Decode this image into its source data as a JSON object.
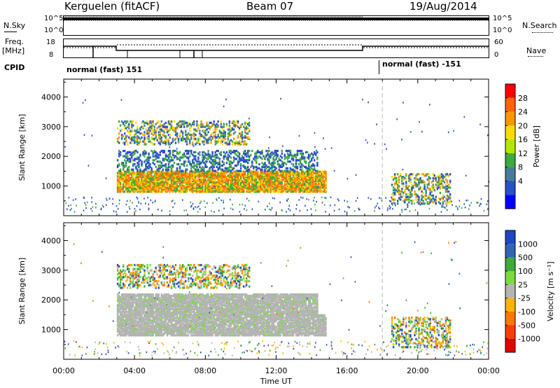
{
  "header": {
    "radar": "Kerguelen (fitACF)",
    "beam": "Beam 07",
    "date": "19/Aug/2014"
  },
  "top_panels": {
    "nsky_label": "N.Sky",
    "nsky_ticks": [
      "10^5",
      "10^0"
    ],
    "nsearch_label": "N.Search",
    "nsearch_ticks": [
      "10^5",
      "10^0"
    ],
    "freq_label": "Freq.",
    "freq_unit": "[MHz]",
    "freq_ticks": [
      "18",
      "8"
    ],
    "nave_label": "Nave",
    "nave_ticks": [
      "60",
      "0"
    ],
    "cpid_label": "CPID",
    "cpid_segments": [
      "normal (fast) 151",
      "normal (fast) -151"
    ]
  },
  "chart_data": [
    {
      "type": "heatmap",
      "name": "Power",
      "xlabel": "",
      "ylabel": "Slant Range [km]",
      "xlim": [
        "00:00",
        "24:00"
      ],
      "ylim": [
        0,
        4600
      ],
      "yticks": [
        "1000",
        "2000",
        "3000",
        "4000"
      ],
      "colorbar_label": "Power [dB]",
      "colorbar_ticks": [
        "28",
        "24",
        "20",
        "16",
        "12",
        "8",
        "4"
      ],
      "colorbar_colors": [
        "#ff0000",
        "#ff6400",
        "#ff9600",
        "#ffdc00",
        "#b4e600",
        "#3caa3c",
        "#4a7a9a",
        "#2850c8",
        "#0000ff"
      ],
      "echo_regions": [
        {
          "t_start": 3.0,
          "t_end": 14.8,
          "r_start": 800,
          "r_end": 1500,
          "level": "high"
        },
        {
          "t_start": 3.0,
          "t_end": 14.3,
          "r_start": 1500,
          "r_end": 2200,
          "level": "low"
        },
        {
          "t_start": 3.0,
          "t_end": 10.5,
          "r_start": 2400,
          "r_end": 3200,
          "level": "mixed"
        },
        {
          "t_start": 18.5,
          "t_end": 21.8,
          "r_start": 400,
          "r_end": 1400,
          "level": "mixed"
        }
      ]
    },
    {
      "type": "heatmap",
      "name": "Velocity",
      "xlabel": "Time UT",
      "ylabel": "Slant Range [km]",
      "xlim": [
        "00:00",
        "24:00"
      ],
      "ylim": [
        0,
        4600
      ],
      "xticks": [
        "00:00",
        "04:00",
        "08:00",
        "12:00",
        "16:00",
        "20:00",
        "00:00"
      ],
      "yticks": [
        "1000",
        "2000",
        "3000",
        "4000"
      ],
      "colorbar_label": "Velocity [m s⁻¹]",
      "colorbar_ticks": [
        "1000",
        "500",
        "100",
        "25",
        "-25",
        "-100",
        "-500",
        "-1000"
      ],
      "colorbar_colors": [
        "#1e46c8",
        "#3264b4",
        "#3caa3c",
        "#78dc3c",
        "#b4b4b4",
        "#ffb400",
        "#ff7800",
        "#ff3c00",
        "#e60000"
      ],
      "ground_scatter_color": "#b4b4b4",
      "echo_regions": [
        {
          "t_start": 3.0,
          "t_end": 14.8,
          "r_start": 800,
          "r_end": 1500,
          "level": "ground"
        },
        {
          "t_start": 3.0,
          "t_end": 14.3,
          "r_start": 1500,
          "r_end": 2200,
          "level": "ground"
        },
        {
          "t_start": 3.0,
          "t_end": 10.5,
          "r_start": 2400,
          "r_end": 3200,
          "level": "mixed"
        },
        {
          "t_start": 18.5,
          "t_end": 21.8,
          "r_start": 400,
          "r_end": 1400,
          "level": "mixed"
        }
      ]
    }
  ]
}
